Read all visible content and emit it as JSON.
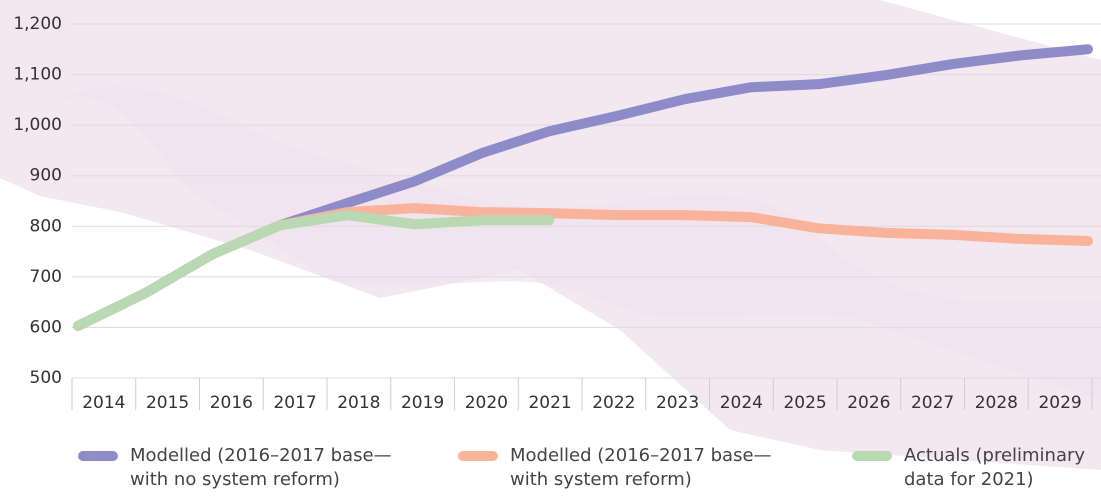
{
  "chart_data": {
    "type": "line",
    "categories": [
      "2014",
      "2015",
      "2016",
      "2017",
      "2018",
      "2019",
      "2020",
      "2021",
      "2022",
      "2023",
      "2024",
      "2025",
      "2026",
      "2027",
      "2028",
      "2029"
    ],
    "series": [
      {
        "name": "Modelled (2016–2017 base—with no system reform)",
        "color": "#8e8cc8",
        "values": [
          603,
          668,
          745,
          802,
          846,
          889,
          945,
          988,
          1018,
          1051,
          1075,
          1081,
          1099,
          1121,
          1138,
          1150
        ]
      },
      {
        "name": "Modelled (2016–2017 base—with system reform)",
        "color": "#f8b39a",
        "values": [
          603,
          668,
          745,
          802,
          828,
          836,
          828,
          826,
          822,
          822,
          818,
          796,
          787,
          783,
          775,
          771
        ]
      },
      {
        "name": "Actuals (preliminary data for 2021)",
        "color": "#b8d9b2",
        "values": [
          603,
          668,
          745,
          802,
          822,
          804,
          812,
          812,
          null,
          null,
          null,
          null,
          null,
          null,
          null,
          null
        ]
      }
    ],
    "ylim": [
      500,
      1200
    ],
    "yticks": [
      500,
      600,
      700,
      800,
      900,
      {
        "value": 1000,
        "label": "1,000"
      },
      {
        "value": 1100,
        "label": "1,100"
      },
      {
        "value": 1200,
        "label": "1,200"
      }
    ],
    "grid": true
  }
}
